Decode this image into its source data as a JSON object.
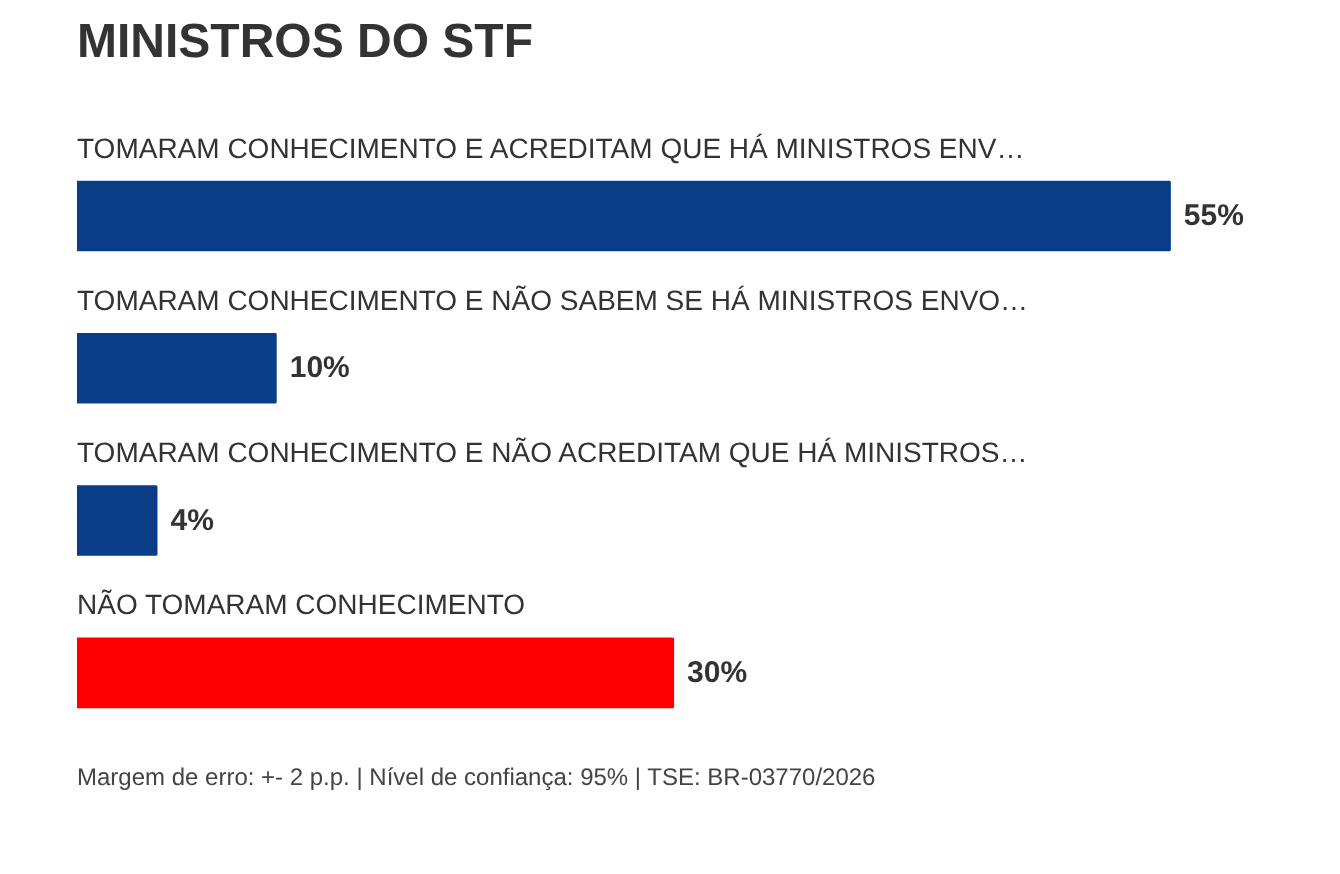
{
  "chart_data": {
    "type": "bar",
    "orientation": "horizontal",
    "title": "MINISTROS DO STF",
    "categories": [
      "TOMARAM CONHECIMENTO E ACREDITAM QUE HÁ MINISTROS ENV…",
      "TOMARAM CONHECIMENTO E NÃO SABEM SE HÁ MINISTROS ENVO…",
      "TOMARAM CONHECIMENTO E NÃO ACREDITAM QUE HÁ MINISTROS…",
      "NÃO TOMARAM CONHECIMENTO"
    ],
    "values": [
      55,
      10,
      4,
      30
    ],
    "colors": [
      "#0a3d87",
      "#0a3d87",
      "#0a3d87",
      "#ff0000"
    ],
    "value_labels": [
      "55%",
      "10%",
      "4%",
      "30%"
    ],
    "annotations": [
      "Margem de erro: +- 2 p.p. | Nível de confiança: 95% | TSE: BR-03770/2026"
    ]
  }
}
